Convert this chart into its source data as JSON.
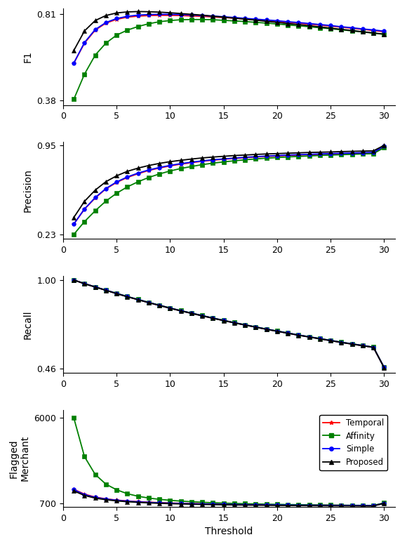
{
  "threshold": [
    1,
    2,
    3,
    4,
    5,
    6,
    7,
    8,
    9,
    10,
    11,
    12,
    13,
    14,
    15,
    16,
    17,
    18,
    19,
    20,
    21,
    22,
    23,
    24,
    25,
    26,
    27,
    28,
    29,
    30
  ],
  "f1_temporal": [
    0.565,
    0.665,
    0.73,
    0.765,
    0.784,
    0.795,
    0.8,
    0.803,
    0.804,
    0.804,
    0.803,
    0.801,
    0.799,
    0.796,
    0.793,
    0.79,
    0.786,
    0.782,
    0.778,
    0.774,
    0.77,
    0.765,
    0.76,
    0.755,
    0.75,
    0.745,
    0.739,
    0.734,
    0.728,
    0.722
  ],
  "f1_affinity": [
    0.384,
    0.51,
    0.605,
    0.665,
    0.705,
    0.73,
    0.748,
    0.762,
    0.772,
    0.778,
    0.782,
    0.783,
    0.783,
    0.782,
    0.779,
    0.776,
    0.773,
    0.769,
    0.765,
    0.761,
    0.756,
    0.752,
    0.747,
    0.742,
    0.737,
    0.732,
    0.726,
    0.721,
    0.715,
    0.709
  ],
  "f1_simple": [
    0.565,
    0.668,
    0.733,
    0.768,
    0.788,
    0.799,
    0.805,
    0.808,
    0.809,
    0.809,
    0.808,
    0.806,
    0.803,
    0.8,
    0.797,
    0.793,
    0.789,
    0.785,
    0.781,
    0.777,
    0.772,
    0.768,
    0.763,
    0.758,
    0.753,
    0.747,
    0.742,
    0.736,
    0.731,
    0.725
  ],
  "f1_proposed": [
    0.628,
    0.726,
    0.778,
    0.803,
    0.816,
    0.821,
    0.823,
    0.822,
    0.82,
    0.817,
    0.813,
    0.809,
    0.805,
    0.8,
    0.795,
    0.79,
    0.785,
    0.78,
    0.774,
    0.769,
    0.763,
    0.758,
    0.752,
    0.746,
    0.74,
    0.734,
    0.728,
    0.722,
    0.716,
    0.71
  ],
  "prec_temporal": [
    0.315,
    0.435,
    0.525,
    0.598,
    0.65,
    0.69,
    0.72,
    0.746,
    0.766,
    0.783,
    0.797,
    0.809,
    0.82,
    0.829,
    0.836,
    0.843,
    0.849,
    0.854,
    0.859,
    0.863,
    0.867,
    0.87,
    0.873,
    0.876,
    0.879,
    0.881,
    0.883,
    0.886,
    0.888,
    0.94
  ],
  "prec_affinity": [
    0.232,
    0.335,
    0.422,
    0.5,
    0.563,
    0.614,
    0.655,
    0.69,
    0.718,
    0.742,
    0.762,
    0.778,
    0.793,
    0.805,
    0.815,
    0.824,
    0.832,
    0.839,
    0.845,
    0.85,
    0.855,
    0.859,
    0.863,
    0.867,
    0.87,
    0.873,
    0.876,
    0.879,
    0.881,
    0.93
  ],
  "prec_simple": [
    0.315,
    0.437,
    0.528,
    0.601,
    0.654,
    0.694,
    0.725,
    0.75,
    0.77,
    0.787,
    0.801,
    0.813,
    0.823,
    0.832,
    0.839,
    0.846,
    0.852,
    0.857,
    0.862,
    0.866,
    0.87,
    0.873,
    0.876,
    0.879,
    0.882,
    0.884,
    0.886,
    0.889,
    0.891,
    0.943
  ],
  "prec_proposed": [
    0.368,
    0.498,
    0.588,
    0.656,
    0.703,
    0.739,
    0.765,
    0.786,
    0.803,
    0.817,
    0.828,
    0.838,
    0.847,
    0.854,
    0.86,
    0.866,
    0.87,
    0.875,
    0.879,
    0.882,
    0.885,
    0.888,
    0.891,
    0.893,
    0.895,
    0.898,
    0.9,
    0.902,
    0.904,
    0.948
  ],
  "recall_temporal": [
    1.0,
    0.978,
    0.958,
    0.938,
    0.918,
    0.899,
    0.881,
    0.863,
    0.846,
    0.829,
    0.813,
    0.798,
    0.783,
    0.768,
    0.754,
    0.74,
    0.727,
    0.714,
    0.701,
    0.689,
    0.677,
    0.665,
    0.654,
    0.643,
    0.632,
    0.621,
    0.611,
    0.601,
    0.591,
    0.468
  ],
  "recall_affinity": [
    1.0,
    0.978,
    0.958,
    0.938,
    0.919,
    0.9,
    0.882,
    0.864,
    0.847,
    0.83,
    0.814,
    0.799,
    0.784,
    0.769,
    0.755,
    0.741,
    0.728,
    0.715,
    0.702,
    0.69,
    0.678,
    0.666,
    0.655,
    0.644,
    0.633,
    0.622,
    0.612,
    0.602,
    0.592,
    0.469
  ],
  "recall_simple": [
    1.0,
    0.978,
    0.958,
    0.938,
    0.918,
    0.899,
    0.881,
    0.863,
    0.846,
    0.829,
    0.813,
    0.798,
    0.783,
    0.768,
    0.754,
    0.74,
    0.727,
    0.714,
    0.701,
    0.689,
    0.677,
    0.665,
    0.654,
    0.643,
    0.632,
    0.621,
    0.611,
    0.601,
    0.591,
    0.468
  ],
  "recall_proposed": [
    1.0,
    0.977,
    0.957,
    0.937,
    0.917,
    0.898,
    0.88,
    0.862,
    0.845,
    0.828,
    0.812,
    0.797,
    0.782,
    0.767,
    0.753,
    0.739,
    0.726,
    0.713,
    0.7,
    0.688,
    0.676,
    0.664,
    0.653,
    0.642,
    0.631,
    0.62,
    0.61,
    0.6,
    0.59,
    0.467
  ],
  "flagged_temporal": [
    1580,
    1280,
    1100,
    990,
    915,
    860,
    818,
    784,
    756,
    733,
    714,
    697,
    682,
    669,
    658,
    648,
    639,
    631,
    624,
    618,
    612,
    606,
    601,
    596,
    592,
    588,
    583,
    579,
    576,
    720
  ],
  "flagged_affinity": [
    6000,
    3600,
    2500,
    1900,
    1550,
    1310,
    1150,
    1040,
    960,
    900,
    850,
    812,
    778,
    750,
    727,
    707,
    690,
    675,
    661,
    649,
    639,
    629,
    620,
    612,
    605,
    598,
    592,
    586,
    581,
    740
  ],
  "flagged_simple": [
    1560,
    1250,
    1080,
    975,
    900,
    845,
    805,
    771,
    744,
    722,
    703,
    686,
    672,
    659,
    648,
    638,
    630,
    622,
    615,
    609,
    603,
    597,
    592,
    587,
    583,
    579,
    575,
    571,
    568,
    715
  ],
  "flagged_proposed": [
    1480,
    1200,
    1035,
    935,
    865,
    813,
    773,
    741,
    715,
    693,
    675,
    659,
    645,
    633,
    623,
    613,
    605,
    598,
    591,
    585,
    580,
    575,
    570,
    566,
    562,
    558,
    555,
    551,
    549,
    710
  ],
  "colors": {
    "temporal": "#ff0000",
    "affinity": "#008000",
    "simple": "#0000ff",
    "proposed": "#000000"
  },
  "markers": {
    "temporal": "*",
    "affinity": "s",
    "simple": "o",
    "proposed": "^"
  },
  "f1_ylim": [
    0.355,
    0.84
  ],
  "f1_yticks": [
    0.38,
    0.81
  ],
  "prec_ylim": [
    0.195,
    0.975
  ],
  "prec_yticks": [
    0.23,
    0.95
  ],
  "recall_ylim": [
    0.435,
    1.025
  ],
  "recall_yticks": [
    0.46,
    1.0
  ],
  "flagged_ylim": [
    500,
    6500
  ],
  "flagged_yticks": [
    700,
    6000
  ],
  "xlim": [
    0,
    31
  ],
  "xticks": [
    0,
    5,
    10,
    15,
    20,
    25,
    30
  ],
  "xlabel": "Threshold",
  "ylabel_f1": "F1",
  "ylabel_prec": "Precision",
  "ylabel_recall": "Recall",
  "ylabel_flagged": "Flagged\nMerchant",
  "legend_labels": [
    "Temporal",
    "Affinity",
    "Simple",
    "Proposed"
  ],
  "legend_colors": [
    "#ff0000",
    "#008000",
    "#0000ff",
    "#000000"
  ],
  "legend_markers": [
    "*",
    "s",
    "o",
    "^"
  ]
}
